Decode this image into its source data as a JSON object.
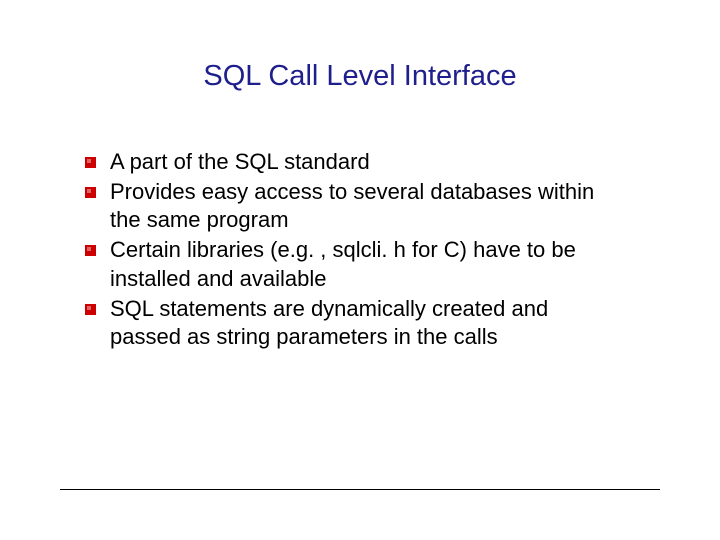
{
  "slide": {
    "title": "SQL Call Level Interface",
    "title_color": "#1e1e8c",
    "title_fontsize": 29,
    "bullets": [
      {
        "text": "A part of the SQL standard"
      },
      {
        "text": "Provides easy access to several databases within the same program"
      },
      {
        "text": "Certain libraries (e.g. , sqlcli. h for C)  have to be installed and available"
      },
      {
        "text": "SQL statements are dynamically created and passed as string parameters in the calls"
      }
    ],
    "bullet_marker_color": "#cc0000",
    "body_fontsize": 22,
    "body_color": "#000000",
    "background_color": "#ffffff"
  }
}
